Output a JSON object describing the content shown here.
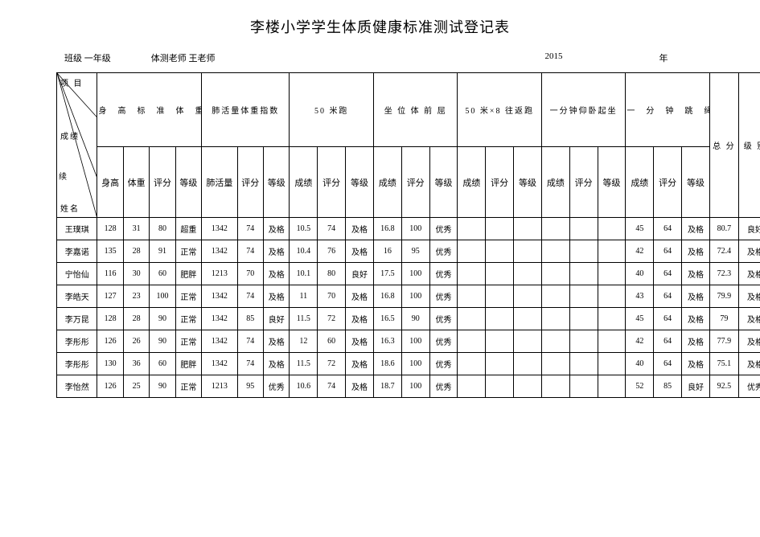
{
  "title": "李楼小学学生体质健康标准测试登记表",
  "info": {
    "grade_label": "班级",
    "grade_value": "一年级",
    "teacher_label": "体测老师",
    "teacher_value": "王老师",
    "year": "2015",
    "year_label": "年"
  },
  "diagonal": {
    "project": "项 目",
    "score": "成绩",
    "xu": "续",
    "name": "姓名"
  },
  "groups": [
    {
      "label": "身　高　标　准　体　重",
      "span": 4
    },
    {
      "label": "肺活量体重指数",
      "span": 3
    },
    {
      "label": "50 米跑",
      "span": 3
    },
    {
      "label": "坐 位 体 前 屈",
      "span": 3
    },
    {
      "label": "50 米×8 往返跑",
      "span": 3
    },
    {
      "label": "一分钟仰卧起坐",
      "span": 3
    },
    {
      "label": "一　分　钟　跳　绳",
      "span": 3
    }
  ],
  "subheaders_g1": [
    "身高",
    "体重",
    "评分",
    "等级"
  ],
  "subheaders_g2": [
    "肺活量",
    "评分",
    "等级"
  ],
  "subheaders_g3": [
    "成绩",
    "评分",
    "等级",
    "成绩",
    "评分",
    "等级",
    "成绩",
    "评分",
    "等级",
    "成绩",
    "评分",
    "等级",
    "成绩",
    "评分",
    "等级"
  ],
  "tail_headers": [
    "总 分",
    "级 别"
  ],
  "rows": [
    {
      "name": "王璞琪",
      "h": "128",
      "w": "31",
      "bmi_s": "80",
      "bmi_g": "超重",
      "lung": "1342",
      "lung_s": "74",
      "lung_g": "及格",
      "r50": "10.5",
      "r50_s": "74",
      "r50_g": "及格",
      "sit": "16.8",
      "sit_s": "100",
      "sit_g": "优秀",
      "ret": "",
      "ret_s": "",
      "ret_g": "",
      "su": "",
      "su_s": "",
      "su_g": "",
      "rope": "45",
      "rope_s": "64",
      "rope_g": "及格",
      "total": "80.7",
      "level": "良好"
    },
    {
      "name": "李嘉诺",
      "h": "135",
      "w": "28",
      "bmi_s": "91",
      "bmi_g": "正常",
      "lung": "1342",
      "lung_s": "74",
      "lung_g": "及格",
      "r50": "10.4",
      "r50_s": "76",
      "r50_g": "及格",
      "sit": "16",
      "sit_s": "95",
      "sit_g": "优秀",
      "ret": "",
      "ret_s": "",
      "ret_g": "",
      "su": "",
      "su_s": "",
      "su_g": "",
      "rope": "42",
      "rope_s": "64",
      "rope_g": "及格",
      "total": "72.4",
      "level": "及格"
    },
    {
      "name": "宁怡仙",
      "h": "116",
      "w": "30",
      "bmi_s": "60",
      "bmi_g": "肥胖",
      "lung": "1213",
      "lung_s": "70",
      "lung_g": "及格",
      "r50": "10.1",
      "r50_s": "80",
      "r50_g": "良好",
      "sit": "17.5",
      "sit_s": "100",
      "sit_g": "优秀",
      "ret": "",
      "ret_s": "",
      "ret_g": "",
      "su": "",
      "su_s": "",
      "su_g": "",
      "rope": "40",
      "rope_s": "64",
      "rope_g": "及格",
      "total": "72.3",
      "level": "及格"
    },
    {
      "name": "李皓天",
      "h": "127",
      "w": "23",
      "bmi_s": "100",
      "bmi_g": "正常",
      "lung": "1342",
      "lung_s": "74",
      "lung_g": "及格",
      "r50": "11",
      "r50_s": "70",
      "r50_g": "及格",
      "sit": "16.8",
      "sit_s": "100",
      "sit_g": "优秀",
      "ret": "",
      "ret_s": "",
      "ret_g": "",
      "su": "",
      "su_s": "",
      "su_g": "",
      "rope": "43",
      "rope_s": "64",
      "rope_g": "及格",
      "total": "79.9",
      "level": "及格"
    },
    {
      "name": "李万昆",
      "h": "128",
      "w": "28",
      "bmi_s": "90",
      "bmi_g": "正常",
      "lung": "1342",
      "lung_s": "85",
      "lung_g": "良好",
      "r50": "11.5",
      "r50_s": "72",
      "r50_g": "及格",
      "sit": "16.5",
      "sit_s": "90",
      "sit_g": "优秀",
      "ret": "",
      "ret_s": "",
      "ret_g": "",
      "su": "",
      "su_s": "",
      "su_g": "",
      "rope": "45",
      "rope_s": "64",
      "rope_g": "及格",
      "total": "79",
      "level": "及格"
    },
    {
      "name": "李彤彤",
      "h": "126",
      "w": "26",
      "bmi_s": "90",
      "bmi_g": "正常",
      "lung": "1342",
      "lung_s": "74",
      "lung_g": "及格",
      "r50": "12",
      "r50_s": "60",
      "r50_g": "及格",
      "sit": "16.3",
      "sit_s": "100",
      "sit_g": "优秀",
      "ret": "",
      "ret_s": "",
      "ret_g": "",
      "su": "",
      "su_s": "",
      "su_g": "",
      "rope": "42",
      "rope_s": "64",
      "rope_g": "及格",
      "total": "77.9",
      "level": "及格"
    },
    {
      "name": "李彤彤",
      "h": "130",
      "w": "36",
      "bmi_s": "60",
      "bmi_g": "肥胖",
      "lung": "1342",
      "lung_s": "74",
      "lung_g": "及格",
      "r50": "11.5",
      "r50_s": "72",
      "r50_g": "及格",
      "sit": "18.6",
      "sit_s": "100",
      "sit_g": "优秀",
      "ret": "",
      "ret_s": "",
      "ret_g": "",
      "su": "",
      "su_s": "",
      "su_g": "",
      "rope": "40",
      "rope_s": "64",
      "rope_g": "及格",
      "total": "75.1",
      "level": "及格"
    },
    {
      "name": "李怡然",
      "h": "126",
      "w": "25",
      "bmi_s": "90",
      "bmi_g": "正常",
      "lung": "1213",
      "lung_s": "95",
      "lung_g": "优秀",
      "r50": "10.6",
      "r50_s": "74",
      "r50_g": "及格",
      "sit": "18.7",
      "sit_s": "100",
      "sit_g": "优秀",
      "ret": "",
      "ret_s": "",
      "ret_g": "",
      "su": "",
      "su_s": "",
      "su_g": "",
      "rope": "52",
      "rope_s": "85",
      "rope_g": "良好",
      "total": "92.5",
      "level": "优秀"
    }
  ]
}
